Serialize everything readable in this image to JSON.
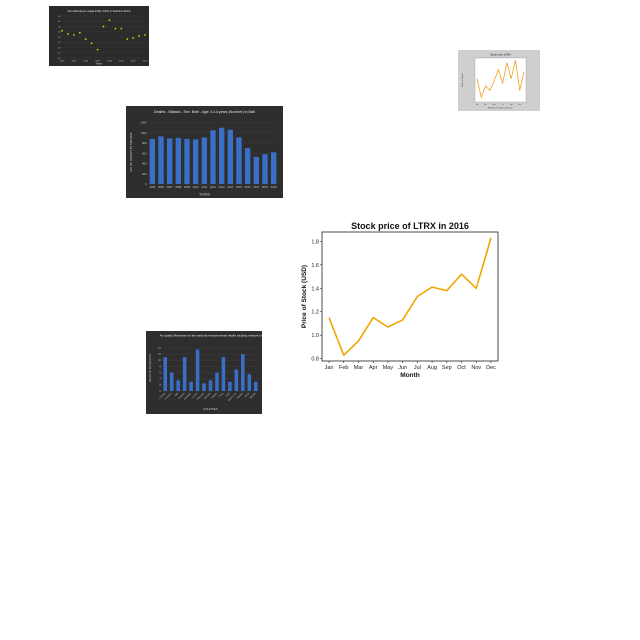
{
  "chart_data": [
    {
      "type": "scatter",
      "title": "Net child aid per capita (USD, 2017) in Southern Africa",
      "xlabel": "Years",
      "ylabel": "",
      "x": [
        2001,
        2002,
        2003,
        2004,
        2005,
        2006,
        2007,
        2008,
        2009,
        2010,
        2011,
        2012,
        2013,
        2014,
        2015
      ],
      "values": [
        36,
        33,
        32,
        34,
        28,
        24,
        18,
        40,
        46,
        38,
        38,
        28,
        29,
        31,
        32
      ],
      "x_ticks": [
        "2001",
        "2003",
        "2005",
        "2007",
        "2009",
        "2011",
        "2013",
        "2015"
      ],
      "y_ticks": [
        "10",
        "15",
        "20",
        "25",
        "30",
        "35",
        "40",
        "45",
        "50"
      ],
      "ylim": [
        10,
        50
      ],
      "colors": {
        "background": "#2b2b2b",
        "marker": "#c8d400"
      }
    },
    {
      "type": "line",
      "title": "Stock price of IBX",
      "xlabel": "Month of month selection",
      "ylabel": "Price of Stock",
      "x": [
        "Jan",
        "Feb",
        "Mar",
        "Apr",
        "May",
        "Jun",
        "Jul",
        "Aug",
        "Sep",
        "Oct",
        "Nov",
        "Dec"
      ],
      "values": [
        0.6,
        0.2,
        0.45,
        0.35,
        0.55,
        0.8,
        0.5,
        0.95,
        0.6,
        1.0,
        0.35,
        0.75
      ],
      "ylim": [
        0.1,
        1.05
      ],
      "colors": {
        "background": "#cfcfcf",
        "line": "#f0a020"
      }
    },
    {
      "type": "bar",
      "title": "Deaths - Malaria - Sex: Both - Age: 5-14 years (Number) in Mali",
      "xlabel": "YEARS",
      "ylabel": "NO. OF DEATHS BY MALARIA",
      "categories": [
        "2005",
        "2006",
        "2007",
        "2008",
        "2009",
        "2010",
        "2011",
        "2012",
        "2013",
        "2014",
        "2015",
        "2016",
        "2017",
        "2018",
        "2019"
      ],
      "values": [
        880,
        930,
        890,
        900,
        880,
        870,
        910,
        1050,
        1100,
        1060,
        910,
        700,
        530,
        580,
        620
      ],
      "y_ticks": [
        "0",
        "200",
        "400",
        "600",
        "800",
        "1000",
        "1200"
      ],
      "ylim": [
        0,
        1250
      ],
      "colors": {
        "background": "#2e2e2e",
        "bar": "#3a6fc8"
      }
    },
    {
      "type": "line",
      "title": "Stock price of LTRX in 2016",
      "xlabel": "Month",
      "ylabel": "Price of Stock (USD)",
      "x": [
        "Jan",
        "Feb",
        "Mar",
        "Apr",
        "May",
        "Jun",
        "Jul",
        "Aug",
        "Sep",
        "Oct",
        "Nov",
        "Dec"
      ],
      "values": [
        1.15,
        0.83,
        0.95,
        1.15,
        1.07,
        1.13,
        1.33,
        1.41,
        1.38,
        1.52,
        1.4,
        1.83
      ],
      "y_ticks": [
        "0.8",
        "1.0",
        "1.2",
        "1.4",
        "1.6",
        "1.8"
      ],
      "ylim": [
        0.78,
        1.88
      ],
      "grid": false,
      "colors": {
        "line": "#f0a500"
      }
    },
    {
      "type": "bar",
      "title": "Air quality Measures on the national environmental health tracking network in 2009",
      "xlabel": "COUNTIES",
      "ylabel": "VALUE OF AIR QUALITY",
      "categories": [
        "Cochise",
        "Coconino",
        "Gila",
        "Graham",
        "Greenlee",
        "La Paz",
        "Maricopa",
        "Mohave",
        "Navajo",
        "Pima",
        "Pinal",
        "Santa Cruz",
        "Yavapai",
        "Yuma",
        "Apache"
      ],
      "values": [
        11,
        6,
        3.5,
        11,
        3,
        13.5,
        2.5,
        3.5,
        6,
        11,
        3,
        7,
        12,
        5.5,
        3
      ],
      "y_ticks": [
        "0",
        "2",
        "4",
        "6",
        "8",
        "10",
        "12",
        "14"
      ],
      "ylim": [
        0,
        15
      ],
      "colors": {
        "background": "#2e2e2e",
        "bar": "#3a6fc8"
      }
    }
  ]
}
